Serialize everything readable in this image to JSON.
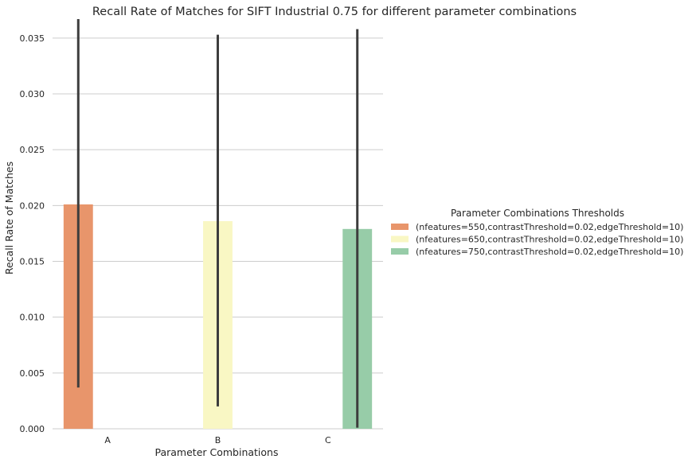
{
  "chart_data": {
    "type": "bar",
    "title": "Recall Rate of Matches for SIFT Industrial 0.75 for different parameter combinations",
    "xlabel": "Parameter Combinations",
    "ylabel": "Recall Rate of Matches",
    "categories": [
      "A",
      "B",
      "C"
    ],
    "ylim": [
      0,
      0.0367
    ],
    "yticks": [
      0.0,
      0.005,
      0.01,
      0.015,
      0.02,
      0.025,
      0.03,
      0.035
    ],
    "ytick_labels": [
      "0.000",
      "0.005",
      "0.010",
      "0.015",
      "0.020",
      "0.025",
      "0.030",
      "0.035"
    ],
    "grid": "horizontal",
    "legend": {
      "title": "Parameter Combinations Thresholds",
      "placement": "right"
    },
    "series": [
      {
        "name": "(nfeatures=550,contrastThreshold=0.02,edgeThreshold=10)",
        "color": "#e8956b",
        "values": [
          0.0201,
          null,
          null
        ],
        "error_low": [
          0.0037,
          null,
          null
        ],
        "error_high": [
          0.0367,
          null,
          null
        ]
      },
      {
        "name": "(nfeatures=650,contrastThreshold=0.02,edgeThreshold=10)",
        "color": "#f9f7c4",
        "values": [
          null,
          0.0186,
          null
        ],
        "error_low": [
          null,
          0.002,
          null
        ],
        "error_high": [
          null,
          0.0353,
          null
        ]
      },
      {
        "name": "(nfeatures=750,contrastThreshold=0.02,edgeThreshold=10)",
        "color": "#97cca8",
        "values": [
          null,
          null,
          0.0179
        ],
        "error_low": [
          null,
          null,
          0.0001
        ],
        "error_high": [
          null,
          null,
          0.0358
        ]
      }
    ]
  }
}
